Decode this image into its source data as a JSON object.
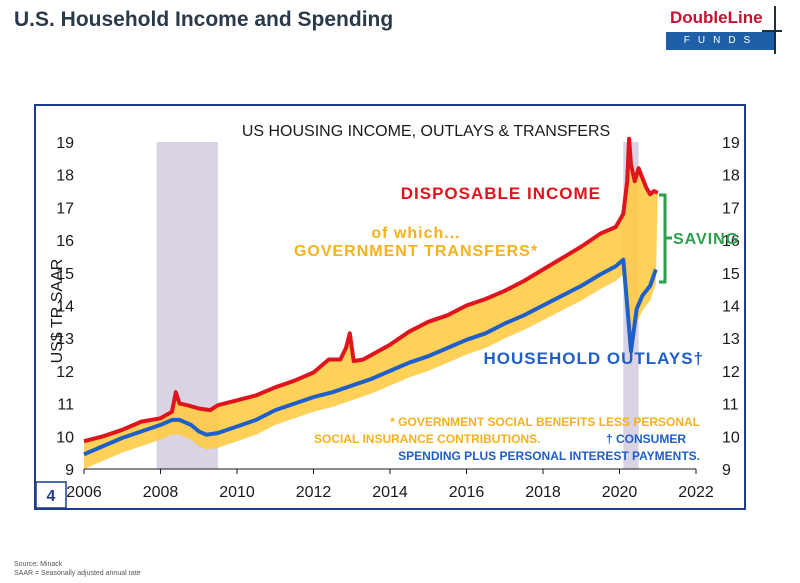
{
  "page": {
    "title": "U.S. Household Income and Spending",
    "logo_top": "DoubleLine",
    "logo_bottom": "FUNDS",
    "source_line1": "Source: Minack",
    "source_line2": "SAAR = Seasonally adjusted annual rate"
  },
  "colors": {
    "disposable_income": "#e0141c",
    "household_outlays": "#1f5fc9",
    "transfers_fill": "#ffc93c",
    "saving": "#2aa04a",
    "recession": "#d9d3e3",
    "frame": "#1f3b8c"
  },
  "chart_data": {
    "type": "line",
    "title": "US HOUSING INCOME, OUTLAYS & TRANSFERS",
    "ylabel": "US$ TR SAAR",
    "xlabel": "",
    "xlim": [
      2006,
      2022
    ],
    "ylim": [
      9,
      19
    ],
    "x_ticks": [
      "2006",
      "2008",
      "2010",
      "2012",
      "2014",
      "2016",
      "2018",
      "2020",
      "2022"
    ],
    "y_ticks": [
      "9",
      "10",
      "11",
      "12",
      "13",
      "14",
      "15",
      "16",
      "17",
      "18",
      "19"
    ],
    "recessions": [
      [
        2007.9,
        2009.5
      ],
      [
        2020.1,
        2020.5
      ]
    ],
    "series": [
      {
        "name": "DISPOSABLE INCOME",
        "x": [
          2006.0,
          2006.5,
          2007.0,
          2007.5,
          2008.0,
          2008.3,
          2008.4,
          2008.5,
          2008.7,
          2009.0,
          2009.3,
          2009.5,
          2010.0,
          2010.5,
          2011.0,
          2011.5,
          2012.0,
          2012.4,
          2012.7,
          2012.85,
          2012.95,
          2013.05,
          2013.3,
          2014.0,
          2014.5,
          2015.0,
          2015.5,
          2016.0,
          2016.5,
          2017.0,
          2017.5,
          2018.0,
          2018.5,
          2019.0,
          2019.5,
          2019.9,
          2020.1,
          2020.2,
          2020.25,
          2020.3,
          2020.4,
          2020.5,
          2020.6,
          2020.7,
          2020.8,
          2020.9,
          2021.0
        ],
        "values": [
          9.85,
          10.0,
          10.2,
          10.45,
          10.55,
          10.75,
          11.35,
          11.0,
          10.95,
          10.85,
          10.8,
          10.95,
          11.1,
          11.25,
          11.5,
          11.7,
          11.95,
          12.35,
          12.35,
          12.7,
          13.15,
          12.3,
          12.35,
          12.8,
          13.2,
          13.5,
          13.7,
          14.0,
          14.2,
          14.45,
          14.75,
          15.1,
          15.45,
          15.8,
          16.2,
          16.4,
          16.8,
          17.8,
          19.1,
          18.3,
          17.8,
          18.2,
          17.9,
          17.6,
          17.4,
          17.5,
          17.45
        ]
      },
      {
        "name": "HOUSEHOLD OUTLAYS",
        "x": [
          2006.0,
          2006.5,
          2007.0,
          2007.5,
          2008.0,
          2008.3,
          2008.5,
          2008.8,
          2009.0,
          2009.2,
          2009.5,
          2010.0,
          2010.5,
          2011.0,
          2011.5,
          2012.0,
          2012.5,
          2013.0,
          2013.5,
          2014.0,
          2014.5,
          2015.0,
          2015.5,
          2016.0,
          2016.5,
          2017.0,
          2017.5,
          2018.0,
          2018.5,
          2019.0,
          2019.5,
          2019.9,
          2020.1,
          2020.2,
          2020.3,
          2020.45,
          2020.6,
          2020.8,
          2020.95
        ],
        "values": [
          9.45,
          9.7,
          9.95,
          10.15,
          10.35,
          10.5,
          10.5,
          10.35,
          10.15,
          10.05,
          10.1,
          10.3,
          10.5,
          10.8,
          11.0,
          11.2,
          11.35,
          11.55,
          11.75,
          12.0,
          12.25,
          12.45,
          12.7,
          12.95,
          13.15,
          13.45,
          13.7,
          14.0,
          14.3,
          14.6,
          14.95,
          15.2,
          15.4,
          14.0,
          12.6,
          13.9,
          14.3,
          14.6,
          15.1
        ]
      }
    ],
    "annotations": {
      "disposable_income": "DISPOSABLE INCOME",
      "transfers_line1": "of which...",
      "transfers_line2": "GOVERNMENT TRANSFERS*",
      "saving": "SAVING",
      "household_outlays": "HOUSEHOLD OUTLAYS†",
      "footnote_line1": "* GOVERNMENT SOCIAL BENEFITS LESS PERSONAL",
      "footnote_line2a": "SOCIAL INSURANCE CONTRIBUTIONS.",
      "footnote_line2b": "† CONSUMER",
      "footnote_line3": "SPENDING PLUS PERSONAL INTEREST PAYMENTS.",
      "chart_number": "4"
    }
  }
}
